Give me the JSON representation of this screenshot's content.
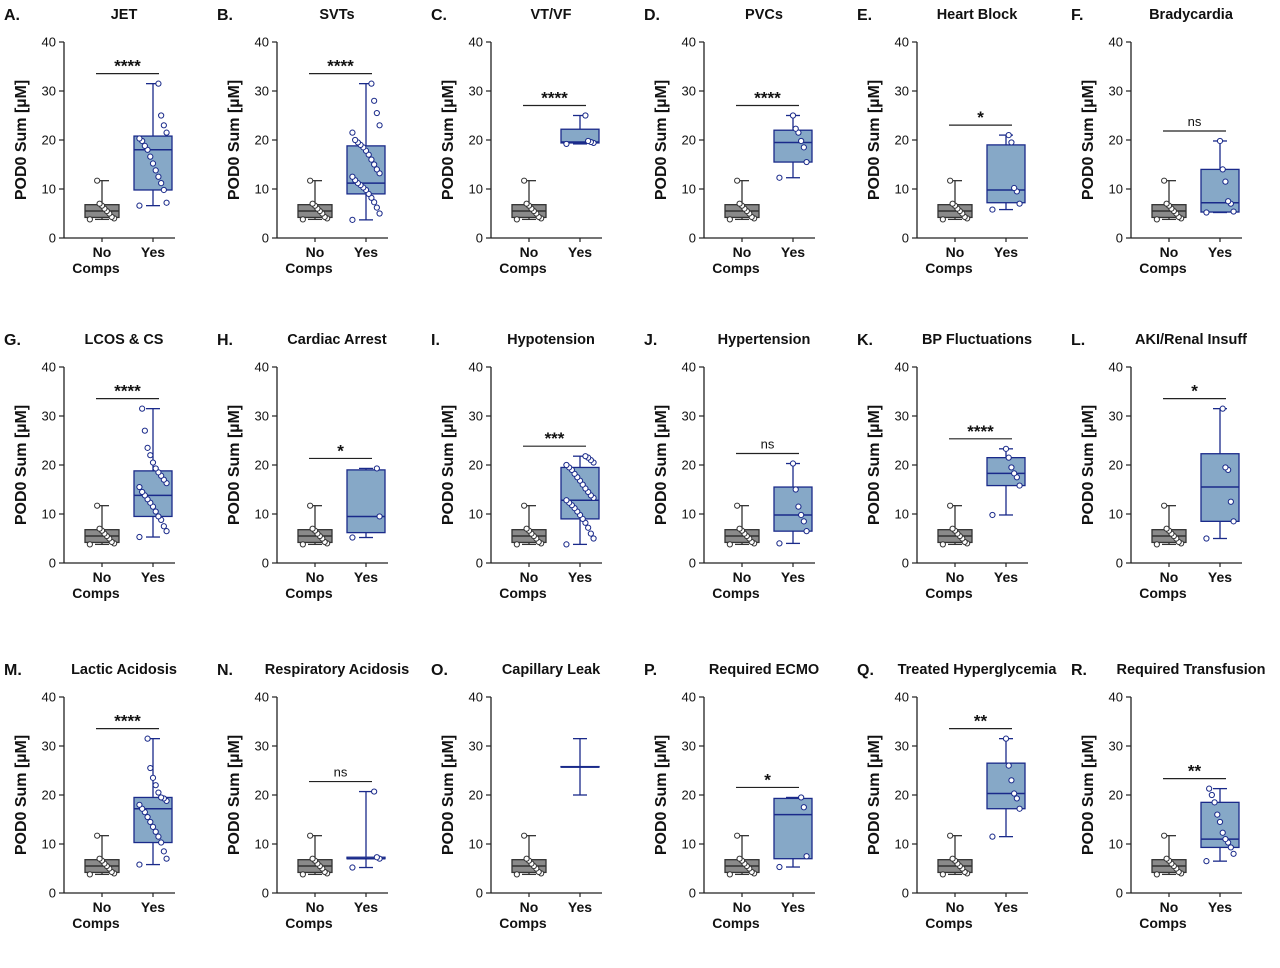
{
  "chart_data": [
    {
      "type": "box",
      "letter": "A.",
      "title": "JET",
      "ylabel": "POD0 Sum [µM]",
      "ylim": [
        0,
        40
      ],
      "yticks": [
        0,
        10,
        20,
        30,
        40
      ],
      "categories": [
        "No\nComps",
        "Yes"
      ],
      "significance": "****",
      "groups": [
        {
          "name": "No\nComps",
          "min": 3.8,
          "q1": 4.2,
          "median": 5.5,
          "q3": 6.8,
          "max": 11.7,
          "points": [
            3.8,
            4.0,
            4.3,
            5.0,
            5.5,
            6.0,
            6.6,
            7.0,
            11.7
          ]
        },
        {
          "name": "Yes",
          "min": 6.6,
          "q1": 9.8,
          "median": 18.0,
          "q3": 20.8,
          "max": 31.5,
          "points": [
            6.6,
            7.2,
            9.8,
            11.2,
            12.5,
            13.8,
            15.2,
            16.6,
            18.0,
            18.8,
            19.8,
            20.3,
            21.5,
            23.0,
            25.0,
            31.5
          ]
        }
      ]
    },
    {
      "type": "box",
      "letter": "B.",
      "title": "SVTs",
      "ylabel": "POD0 Sum [µM]",
      "ylim": [
        0,
        40
      ],
      "yticks": [
        0,
        10,
        20,
        30,
        40
      ],
      "categories": [
        "No\nComps",
        "Yes"
      ],
      "significance": "****",
      "groups": [
        {
          "name": "No\nComps",
          "min": 3.8,
          "q1": 4.2,
          "median": 5.5,
          "q3": 6.8,
          "max": 11.7,
          "points": [
            3.8,
            4.0,
            4.3,
            5.0,
            5.5,
            6.0,
            6.6,
            7.0,
            11.7
          ]
        },
        {
          "name": "Yes",
          "min": 3.7,
          "q1": 9.0,
          "median": 11.2,
          "q3": 18.8,
          "max": 31.5,
          "points": [
            3.7,
            5.0,
            6.2,
            7.3,
            8.2,
            9.0,
            9.8,
            10.3,
            10.8,
            11.2,
            11.8,
            12.5,
            13.2,
            14.0,
            15.0,
            16.0,
            17.0,
            17.8,
            18.5,
            19.0,
            19.5,
            20.0,
            21.5,
            23.0,
            25.5,
            28.0,
            31.5
          ]
        }
      ]
    },
    {
      "type": "box",
      "letter": "C.",
      "title": "VT/VF",
      "ylabel": "POD0 Sum [µM]",
      "ylim": [
        0,
        40
      ],
      "yticks": [
        0,
        10,
        20,
        30,
        40
      ],
      "categories": [
        "No\nComps",
        "Yes"
      ],
      "significance": "****",
      "groups": [
        {
          "name": "No\nComps",
          "min": 3.8,
          "q1": 4.2,
          "median": 5.5,
          "q3": 6.8,
          "max": 11.7,
          "points": [
            3.8,
            4.0,
            4.3,
            5.0,
            5.5,
            6.0,
            6.6,
            7.0,
            11.7
          ]
        },
        {
          "name": "Yes",
          "min": 19.2,
          "q1": 19.4,
          "median": 19.6,
          "q3": 22.2,
          "max": 25.0,
          "points": [
            19.2,
            19.4,
            19.6,
            19.8,
            25.0
          ]
        }
      ]
    },
    {
      "type": "box",
      "letter": "D.",
      "title": "PVCs",
      "ylabel": "POD0 Sum [µM]",
      "ylim": [
        0,
        40
      ],
      "yticks": [
        0,
        10,
        20,
        30,
        40
      ],
      "categories": [
        "No\nComps",
        "Yes"
      ],
      "significance": "****",
      "groups": [
        {
          "name": "No\nComps",
          "min": 3.8,
          "q1": 4.2,
          "median": 5.5,
          "q3": 6.8,
          "max": 11.7,
          "points": [
            3.8,
            4.0,
            4.3,
            5.0,
            5.5,
            6.0,
            6.6,
            7.0,
            11.7
          ]
        },
        {
          "name": "Yes",
          "min": 12.3,
          "q1": 15.5,
          "median": 19.5,
          "q3": 22.0,
          "max": 25.0,
          "points": [
            12.3,
            15.5,
            18.5,
            19.8,
            21.5,
            22.3,
            25.0
          ]
        }
      ]
    },
    {
      "type": "box",
      "letter": "E.",
      "title": "Heart Block",
      "ylabel": "POD0 Sum [µM]",
      "ylim": [
        0,
        40
      ],
      "yticks": [
        0,
        10,
        20,
        30,
        40
      ],
      "categories": [
        "No\nComps",
        "Yes"
      ],
      "significance": "*",
      "groups": [
        {
          "name": "No\nComps",
          "min": 3.8,
          "q1": 4.2,
          "median": 5.5,
          "q3": 6.8,
          "max": 11.7,
          "points": [
            3.8,
            4.0,
            4.3,
            5.0,
            5.5,
            6.0,
            6.6,
            7.0,
            11.7
          ]
        },
        {
          "name": "Yes",
          "min": 5.8,
          "q1": 7.2,
          "median": 9.8,
          "q3": 19.0,
          "max": 21.0,
          "points": [
            5.8,
            7.0,
            9.5,
            10.2,
            19.5,
            21.0
          ]
        }
      ]
    },
    {
      "type": "box",
      "letter": "F.",
      "title": "Bradycardia",
      "ylabel": "POD0 Sum [µM]",
      "ylim": [
        0,
        40
      ],
      "yticks": [
        0,
        10,
        20,
        30,
        40
      ],
      "categories": [
        "No\nComps",
        "Yes"
      ],
      "significance": "ns",
      "groups": [
        {
          "name": "No\nComps",
          "min": 3.8,
          "q1": 4.2,
          "median": 5.5,
          "q3": 6.8,
          "max": 11.7,
          "points": [
            3.8,
            4.0,
            4.3,
            5.0,
            5.5,
            6.0,
            6.6,
            7.0,
            11.7
          ]
        },
        {
          "name": "Yes",
          "min": 5.2,
          "q1": 5.3,
          "median": 7.2,
          "q3": 14.0,
          "max": 19.8,
          "points": [
            5.2,
            5.4,
            7.0,
            7.5,
            11.5,
            14.0,
            19.8
          ]
        }
      ]
    },
    {
      "type": "box",
      "letter": "G.",
      "title": "LCOS & CS",
      "ylabel": "POD0 Sum [µM]",
      "ylim": [
        0,
        40
      ],
      "yticks": [
        0,
        10,
        20,
        30,
        40
      ],
      "categories": [
        "No\nComps",
        "Yes"
      ],
      "significance": "****",
      "groups": [
        {
          "name": "No\nComps",
          "min": 3.8,
          "q1": 4.2,
          "median": 5.5,
          "q3": 6.8,
          "max": 11.7,
          "points": [
            3.8,
            4.0,
            4.3,
            5.0,
            5.5,
            6.0,
            6.6,
            7.0,
            11.7
          ]
        },
        {
          "name": "Yes",
          "min": 5.3,
          "q1": 9.5,
          "median": 13.8,
          "q3": 18.8,
          "max": 31.5,
          "points": [
            5.3,
            6.5,
            7.5,
            8.8,
            9.5,
            10.5,
            11.5,
            12.3,
            13.0,
            13.8,
            14.5,
            15.5,
            16.3,
            17.0,
            17.8,
            18.5,
            19.3,
            20.5,
            22.0,
            23.5,
            27.0,
            31.5
          ]
        }
      ]
    },
    {
      "type": "box",
      "letter": "H.",
      "title": "Cardiac Arrest",
      "ylabel": "POD0 Sum [µM]",
      "ylim": [
        0,
        40
      ],
      "yticks": [
        0,
        10,
        20,
        30,
        40
      ],
      "categories": [
        "No\nComps",
        "Yes"
      ],
      "significance": "*",
      "groups": [
        {
          "name": "No\nComps",
          "min": 3.8,
          "q1": 4.2,
          "median": 5.5,
          "q3": 6.8,
          "max": 11.7,
          "points": [
            3.8,
            4.0,
            4.3,
            5.0,
            5.5,
            6.0,
            6.6,
            7.0,
            11.7
          ]
        },
        {
          "name": "Yes",
          "min": 5.2,
          "q1": 6.2,
          "median": 9.5,
          "q3": 19.0,
          "max": 19.3,
          "points": [
            5.2,
            9.5,
            19.3
          ]
        }
      ]
    },
    {
      "type": "box",
      "letter": "I.",
      "title": "Hypotension",
      "ylabel": "POD0 Sum [µM]",
      "ylim": [
        0,
        40
      ],
      "yticks": [
        0,
        10,
        20,
        30,
        40
      ],
      "categories": [
        "No\nComps",
        "Yes"
      ],
      "significance": "***",
      "groups": [
        {
          "name": "No\nComps",
          "min": 3.8,
          "q1": 4.2,
          "median": 5.5,
          "q3": 6.8,
          "max": 11.7,
          "points": [
            3.8,
            4.0,
            4.3,
            5.0,
            5.5,
            6.0,
            6.6,
            7.0,
            11.7
          ]
        },
        {
          "name": "Yes",
          "min": 3.8,
          "q1": 9.0,
          "median": 12.8,
          "q3": 19.5,
          "max": 21.8,
          "points": [
            3.8,
            5.0,
            6.0,
            7.2,
            8.2,
            9.0,
            9.8,
            10.5,
            11.2,
            11.8,
            12.3,
            12.8,
            13.3,
            13.8,
            14.5,
            15.2,
            16.0,
            16.8,
            17.5,
            18.2,
            19.0,
            19.5,
            20.0,
            20.5,
            21.0,
            21.5,
            21.8
          ]
        }
      ]
    },
    {
      "type": "box",
      "letter": "J.",
      "title": "Hypertension",
      "ylabel": "POD0 Sum [µM]",
      "ylim": [
        0,
        40
      ],
      "yticks": [
        0,
        10,
        20,
        30,
        40
      ],
      "categories": [
        "No\nComps",
        "Yes"
      ],
      "significance": "ns",
      "groups": [
        {
          "name": "No\nComps",
          "min": 3.8,
          "q1": 4.2,
          "median": 5.5,
          "q3": 6.8,
          "max": 11.7,
          "points": [
            3.8,
            4.0,
            4.3,
            5.0,
            5.5,
            6.0,
            6.6,
            7.0,
            11.7
          ]
        },
        {
          "name": "Yes",
          "min": 4.0,
          "q1": 6.5,
          "median": 9.8,
          "q3": 15.5,
          "max": 20.3,
          "points": [
            4.0,
            6.5,
            8.5,
            9.8,
            11.5,
            15.0,
            20.3
          ]
        }
      ]
    },
    {
      "type": "box",
      "letter": "K.",
      "title": "BP Fluctuations",
      "ylabel": "POD0 Sum [µM]",
      "ylim": [
        0,
        40
      ],
      "yticks": [
        0,
        10,
        20,
        30,
        40
      ],
      "categories": [
        "No\nComps",
        "Yes"
      ],
      "significance": "****",
      "groups": [
        {
          "name": "No\nComps",
          "min": 3.8,
          "q1": 4.2,
          "median": 5.5,
          "q3": 6.8,
          "max": 11.7,
          "points": [
            3.8,
            4.0,
            4.3,
            5.0,
            5.5,
            6.0,
            6.6,
            7.0,
            11.7
          ]
        },
        {
          "name": "Yes",
          "min": 9.8,
          "q1": 15.8,
          "median": 18.3,
          "q3": 21.5,
          "max": 23.3,
          "points": [
            9.8,
            15.8,
            17.5,
            18.3,
            19.5,
            21.5,
            23.3
          ]
        }
      ]
    },
    {
      "type": "box",
      "letter": "L.",
      "title": "AKI/Renal Insuff",
      "ylabel": "POD0 Sum [µM]",
      "ylim": [
        0,
        40
      ],
      "yticks": [
        0,
        10,
        20,
        30,
        40
      ],
      "categories": [
        "No\nComps",
        "Yes"
      ],
      "significance": "*",
      "groups": [
        {
          "name": "No\nComps",
          "min": 3.8,
          "q1": 4.2,
          "median": 5.5,
          "q3": 6.8,
          "max": 11.7,
          "points": [
            3.8,
            4.0,
            4.3,
            5.0,
            5.5,
            6.0,
            6.6,
            7.0,
            11.7
          ]
        },
        {
          "name": "Yes",
          "min": 5.0,
          "q1": 8.5,
          "median": 15.5,
          "q3": 22.3,
          "max": 31.5,
          "points": [
            5.0,
            8.5,
            12.5,
            19.0,
            19.5,
            31.5
          ]
        }
      ]
    },
    {
      "type": "box",
      "letter": "M.",
      "title": "Lactic Acidosis",
      "ylabel": "POD0 Sum [µM]",
      "ylim": [
        0,
        40
      ],
      "yticks": [
        0,
        10,
        20,
        30,
        40
      ],
      "categories": [
        "No\nComps",
        "Yes"
      ],
      "significance": "****",
      "groups": [
        {
          "name": "No\nComps",
          "min": 3.8,
          "q1": 4.2,
          "median": 5.5,
          "q3": 6.8,
          "max": 11.7,
          "points": [
            3.8,
            4.0,
            4.3,
            5.0,
            5.5,
            6.0,
            6.6,
            7.0,
            11.7
          ]
        },
        {
          "name": "Yes",
          "min": 5.8,
          "q1": 10.3,
          "median": 17.2,
          "q3": 19.5,
          "max": 31.5,
          "points": [
            5.8,
            7.0,
            8.5,
            10.3,
            11.5,
            12.5,
            13.5,
            14.5,
            15.5,
            16.5,
            17.2,
            18.0,
            18.8,
            19.3,
            19.5,
            20.5,
            22.0,
            23.5,
            25.5,
            31.5
          ]
        }
      ]
    },
    {
      "type": "box",
      "letter": "N.",
      "title": "Respiratory Acidosis",
      "ylabel": "POD0 Sum [µM]",
      "ylim": [
        0,
        40
      ],
      "yticks": [
        0,
        10,
        20,
        30,
        40
      ],
      "categories": [
        "No\nComps",
        "Yes"
      ],
      "significance": "ns",
      "groups": [
        {
          "name": "No\nComps",
          "min": 3.8,
          "q1": 4.2,
          "median": 5.5,
          "q3": 6.8,
          "max": 11.7,
          "points": [
            3.8,
            4.0,
            4.3,
            5.0,
            5.5,
            6.0,
            6.6,
            7.0,
            11.7
          ]
        },
        {
          "name": "Yes",
          "min": 5.2,
          "q1": 7.0,
          "median": 7.0,
          "q3": 7.3,
          "max": 20.7,
          "points": [
            5.2,
            7.0,
            7.3,
            20.7
          ]
        }
      ]
    },
    {
      "type": "box",
      "letter": "O.",
      "title": "Capillary Leak",
      "ylabel": "POD0 Sum [µM]",
      "ylim": [
        0,
        40
      ],
      "yticks": [
        0,
        10,
        20,
        30,
        40
      ],
      "categories": [
        "No\nComps",
        "Yes"
      ],
      "significance": "",
      "groups": [
        {
          "name": "No\nComps",
          "min": 3.8,
          "q1": 4.2,
          "median": 5.5,
          "q3": 6.8,
          "max": 11.7,
          "points": [
            3.8,
            4.0,
            4.3,
            5.0,
            5.5,
            6.0,
            6.6,
            7.0,
            11.7
          ]
        },
        {
          "name": "Yes",
          "min": 20.0,
          "q1": 25.7,
          "median": 25.7,
          "q3": 25.8,
          "max": 31.5,
          "points": []
        }
      ]
    },
    {
      "type": "box",
      "letter": "P.",
      "title": "Required ECMO",
      "ylabel": "POD0 Sum [µM]",
      "ylim": [
        0,
        40
      ],
      "yticks": [
        0,
        10,
        20,
        30,
        40
      ],
      "categories": [
        "No\nComps",
        "Yes"
      ],
      "significance": "*",
      "groups": [
        {
          "name": "No\nComps",
          "min": 3.8,
          "q1": 4.2,
          "median": 5.5,
          "q3": 6.8,
          "max": 11.7,
          "points": [
            3.8,
            4.0,
            4.3,
            5.0,
            5.5,
            6.0,
            6.6,
            7.0,
            11.7
          ]
        },
        {
          "name": "Yes",
          "min": 5.3,
          "q1": 7.0,
          "median": 16.0,
          "q3": 19.3,
          "max": 19.5,
          "points": [
            5.3,
            7.5,
            17.5,
            19.5
          ]
        }
      ]
    },
    {
      "type": "box",
      "letter": "Q.",
      "title": "Treated Hyperglycemia",
      "ylabel": "POD0 Sum [µM]",
      "ylim": [
        0,
        40
      ],
      "yticks": [
        0,
        10,
        20,
        30,
        40
      ],
      "categories": [
        "No\nComps",
        "Yes"
      ],
      "significance": "**",
      "groups": [
        {
          "name": "No\nComps",
          "min": 3.8,
          "q1": 4.2,
          "median": 5.5,
          "q3": 6.8,
          "max": 11.7,
          "points": [
            3.8,
            4.0,
            4.3,
            5.0,
            5.5,
            6.0,
            6.6,
            7.0,
            11.7
          ]
        },
        {
          "name": "Yes",
          "min": 11.5,
          "q1": 17.2,
          "median": 20.3,
          "q3": 26.5,
          "max": 31.5,
          "points": [
            11.5,
            17.2,
            19.3,
            20.3,
            23.0,
            26.0,
            31.5
          ]
        }
      ]
    },
    {
      "type": "box",
      "letter": "R.",
      "title": "Required Transfusion",
      "ylabel": "POD0 Sum [µM]",
      "ylim": [
        0,
        40
      ],
      "yticks": [
        0,
        10,
        20,
        30,
        40
      ],
      "categories": [
        "No\nComps",
        "Yes"
      ],
      "significance": "**",
      "groups": [
        {
          "name": "No\nComps",
          "min": 3.8,
          "q1": 4.2,
          "median": 5.5,
          "q3": 6.8,
          "max": 11.7,
          "points": [
            3.8,
            4.0,
            4.3,
            5.0,
            5.5,
            6.0,
            6.6,
            7.0,
            11.7
          ]
        },
        {
          "name": "Yes",
          "min": 6.5,
          "q1": 9.3,
          "median": 11.0,
          "q3": 18.5,
          "max": 21.3,
          "points": [
            6.5,
            8.0,
            9.3,
            10.3,
            11.0,
            12.3,
            14.5,
            16.0,
            18.5,
            20.0,
            21.3
          ]
        }
      ]
    }
  ],
  "colors": {
    "no_box_fill": "#8a8a8a",
    "no_stroke": "#333333",
    "yes_box_fill": "#86a8c7",
    "yes_stroke": "#1a2a8a",
    "axis": "#222222",
    "text": "#111111"
  }
}
